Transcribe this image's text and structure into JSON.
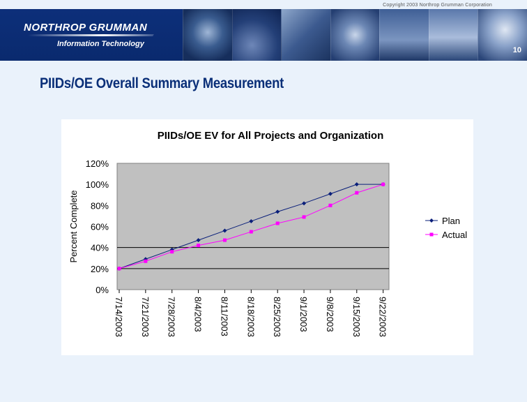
{
  "header": {
    "copyright": "Copyright 2003 Northrop Grumman Corporation",
    "logo_main": "NORTHROP GRUMMAN",
    "logo_sub": "Information Technology",
    "page_number": "10"
  },
  "slide": {
    "title": "PIIDs/OE  Overall Summary Measurement"
  },
  "colors": {
    "plan": "#0a1f7a",
    "actual": "#ff00ff",
    "plot_bg": "#c0c0c0",
    "banner": "#0b3b8c",
    "title": "#0a2f78"
  },
  "chart_data": {
    "type": "line",
    "title": "PIIDs/OE EV for All Projects and Organization",
    "xlabel": "",
    "ylabel": "Percent Complete",
    "ylim": [
      0,
      120
    ],
    "yticks": [
      "0%",
      "20%",
      "40%",
      "60%",
      "80%",
      "100%",
      "120%"
    ],
    "ytick_values": [
      0,
      20,
      40,
      60,
      80,
      100,
      120
    ],
    "gridlines_at": [
      20,
      40
    ],
    "categories": [
      "7/14/2003",
      "7/21/2003",
      "7/28/2003",
      "8/4/2003",
      "8/11/2003",
      "8/18/2003",
      "8/25/2003",
      "9/1/2003",
      "9/8/2003",
      "9/15/2003",
      "9/22/2003"
    ],
    "legend_position": "right",
    "series": [
      {
        "name": "Plan",
        "values": [
          20,
          29,
          38,
          47,
          56,
          65,
          74,
          82,
          91,
          100,
          100
        ]
      },
      {
        "name": "Actual",
        "values": [
          20,
          27,
          36,
          42,
          47,
          55,
          63,
          69,
          80,
          92,
          100
        ]
      }
    ]
  }
}
